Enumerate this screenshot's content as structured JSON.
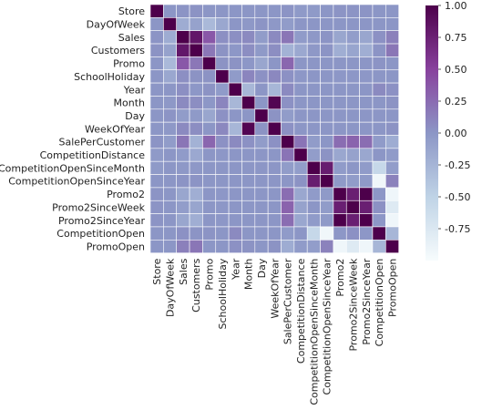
{
  "chart_data": {
    "type": "heatmap",
    "title": "",
    "xlabel": "",
    "ylabel": "",
    "labels": [
      "Store",
      "DayOfWeek",
      "Sales",
      "Customers",
      "Promo",
      "SchoolHoliday",
      "Year",
      "Month",
      "Day",
      "WeekOfYear",
      "SalePerCustomer",
      "CompetitionDistance",
      "CompetitionOpenSinceMonth",
      "CompetitionOpenSinceYear",
      "Promo2",
      "Promo2SinceWeek",
      "Promo2SinceYear",
      "CompetitionOpen",
      "PromoOpen"
    ],
    "matrix": [
      [
        1.0,
        0.0,
        0.01,
        0.02,
        0.0,
        0.0,
        0.0,
        0.0,
        0.0,
        0.0,
        0.01,
        -0.03,
        -0.03,
        0.0,
        0.01,
        0.01,
        0.01,
        0.0,
        0.0
      ],
      [
        0.0,
        1.0,
        -0.18,
        -0.1,
        -0.29,
        -0.14,
        0.0,
        -0.02,
        0.01,
        -0.02,
        -0.05,
        0.0,
        0.0,
        0.0,
        0.0,
        0.0,
        0.0,
        0.0,
        0.0
      ],
      [
        0.01,
        -0.18,
        1.0,
        0.82,
        0.37,
        0.04,
        0.04,
        0.07,
        -0.05,
        0.07,
        0.19,
        -0.04,
        -0.02,
        0.01,
        -0.13,
        -0.06,
        -0.13,
        0.03,
        0.13
      ],
      [
        0.02,
        -0.1,
        0.82,
        1.0,
        0.18,
        0.02,
        -0.01,
        0.05,
        -0.03,
        0.05,
        -0.23,
        -0.15,
        -0.02,
        0.01,
        -0.2,
        -0.12,
        -0.2,
        0.01,
        0.19
      ],
      [
        0.0,
        -0.29,
        0.37,
        0.18,
        1.0,
        0.02,
        0.02,
        -0.01,
        -0.13,
        0.0,
        0.28,
        0.0,
        0.0,
        0.0,
        0.0,
        0.0,
        0.0,
        0.01,
        0.0
      ],
      [
        0.0,
        -0.14,
        0.04,
        0.02,
        0.02,
        1.0,
        -0.04,
        0.1,
        0.03,
        0.08,
        0.03,
        -0.01,
        0.0,
        0.0,
        -0.01,
        -0.01,
        -0.01,
        0.0,
        0.0
      ],
      [
        0.0,
        0.0,
        0.04,
        -0.01,
        0.02,
        -0.04,
        1.0,
        -0.27,
        0.0,
        -0.26,
        0.07,
        0.0,
        0.0,
        0.0,
        0.0,
        0.0,
        0.0,
        0.07,
        0.03
      ],
      [
        0.0,
        -0.02,
        0.07,
        0.05,
        -0.01,
        0.1,
        -0.27,
        1.0,
        0.0,
        0.96,
        0.03,
        0.0,
        0.0,
        0.0,
        0.0,
        0.0,
        0.0,
        0.0,
        0.02
      ],
      [
        0.0,
        0.01,
        -0.05,
        -0.03,
        -0.13,
        0.03,
        0.0,
        0.0,
        1.0,
        0.02,
        -0.05,
        0.0,
        0.0,
        0.0,
        0.0,
        0.0,
        0.0,
        0.0,
        0.0
      ],
      [
        0.0,
        -0.02,
        0.07,
        0.05,
        0.0,
        0.08,
        -0.26,
        0.96,
        0.02,
        1.0,
        0.03,
        0.0,
        0.0,
        0.0,
        0.0,
        0.0,
        0.0,
        0.0,
        0.02
      ],
      [
        0.01,
        -0.05,
        0.19,
        -0.23,
        0.28,
        0.03,
        0.07,
        0.03,
        -0.05,
        0.03,
        1.0,
        0.2,
        -0.05,
        0.0,
        0.24,
        0.3,
        0.24,
        -0.04,
        -0.18
      ],
      [
        -0.03,
        0.0,
        -0.04,
        -0.15,
        0.0,
        -0.01,
        0.0,
        0.0,
        0.0,
        0.0,
        0.2,
        1.0,
        -0.06,
        0.02,
        -0.14,
        -0.1,
        -0.14,
        0.0,
        -0.04
      ],
      [
        -0.03,
        0.0,
        -0.02,
        -0.02,
        0.0,
        0.0,
        0.0,
        0.0,
        0.0,
        0.0,
        -0.05,
        -0.06,
        1.0,
        0.78,
        -0.04,
        0.0,
        -0.04,
        -0.56,
        -0.06
      ],
      [
        0.0,
        0.0,
        0.01,
        0.01,
        0.0,
        0.0,
        0.0,
        0.0,
        0.0,
        0.0,
        0.0,
        0.02,
        0.78,
        1.0,
        -0.03,
        -0.05,
        -0.03,
        -0.94,
        0.12
      ],
      [
        0.01,
        0.0,
        -0.13,
        -0.2,
        0.0,
        -0.01,
        0.0,
        0.0,
        0.0,
        0.0,
        0.24,
        -0.14,
        -0.04,
        -0.03,
        1.0,
        0.76,
        1.0,
        -0.01,
        -0.93
      ],
      [
        0.01,
        0.0,
        -0.06,
        -0.12,
        0.0,
        -0.01,
        0.0,
        0.0,
        0.0,
        0.0,
        0.3,
        -0.1,
        0.0,
        -0.05,
        0.76,
        1.0,
        0.76,
        0.03,
        -0.78
      ],
      [
        0.01,
        0.0,
        -0.13,
        -0.2,
        0.0,
        -0.01,
        0.0,
        0.0,
        0.0,
        0.0,
        0.24,
        -0.14,
        -0.04,
        -0.03,
        1.0,
        0.76,
        1.0,
        -0.01,
        -0.93
      ],
      [
        0.0,
        0.0,
        0.03,
        0.01,
        0.01,
        0.0,
        0.07,
        0.0,
        0.0,
        0.0,
        -0.04,
        0.0,
        -0.56,
        -0.94,
        -0.01,
        0.03,
        -0.01,
        1.0,
        -0.26
      ],
      [
        0.0,
        0.0,
        0.13,
        0.19,
        0.0,
        0.0,
        0.03,
        0.02,
        0.0,
        0.02,
        -0.18,
        -0.04,
        -0.06,
        0.12,
        -0.93,
        -0.78,
        -0.93,
        -0.26,
        1.0
      ]
    ],
    "vmin": -1.0,
    "vmax": 1.0,
    "colormap": [
      "#f7fcfd",
      "#bfd3e6",
      "#8c96c6",
      "#88419d",
      "#4d004b"
    ],
    "colorbar_ticks": [
      "1.00",
      "0.75",
      "0.50",
      "0.25",
      "0.00",
      "-0.25",
      "-0.50",
      "-0.75"
    ],
    "colorbar_tick_values": [
      1.0,
      0.75,
      0.5,
      0.25,
      0.0,
      -0.25,
      -0.5,
      -0.75
    ],
    "grid_color": "#ffffff",
    "legend": "right"
  }
}
